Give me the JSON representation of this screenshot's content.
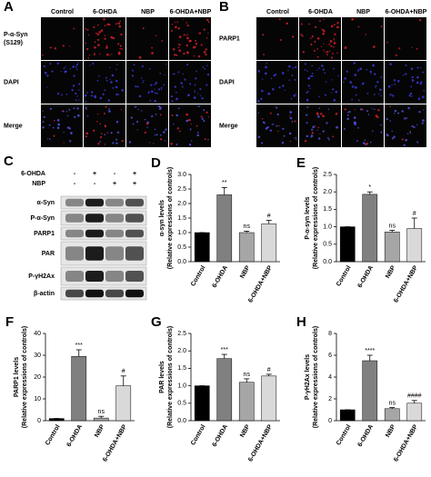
{
  "panel_a": {
    "label": "A",
    "columns": [
      "Control",
      "6-OHDA",
      "NBP",
      "6-OHDA+NBP"
    ],
    "rows": [
      [
        "P-α-Syn",
        "(S129)"
      ],
      [
        "DAPI"
      ],
      [
        "Merge"
      ]
    ]
  },
  "panel_b": {
    "label": "B",
    "columns": [
      "Control",
      "6-OHDA",
      "NBP",
      "6-OHDA+NBP"
    ],
    "rows": [
      [
        "PARP1"
      ],
      [
        "DAPI"
      ],
      [
        "Merge"
      ]
    ]
  },
  "panel_c": {
    "label": "C",
    "treatments": [
      {
        "name": "6-OHDA",
        "signs": [
          "-",
          "+",
          "-",
          "+"
        ]
      },
      {
        "name": "NBP",
        "signs": [
          "-",
          "-",
          "+",
          "+"
        ]
      }
    ],
    "bands": [
      "α-Syn",
      "P-α-Syn",
      "PARP1",
      "PAR",
      "P-γH2Ax",
      "β-actin"
    ]
  },
  "chart_data": [
    {
      "type": "bar",
      "panel": "D",
      "ylabel": "α-syn levels",
      "ylabel2": "(Relative expressions of controls)",
      "categories": [
        "Control",
        "6-OHDA",
        "NBP",
        "6-OHDA+NBP"
      ],
      "values": [
        1.0,
        2.3,
        1.0,
        1.3
      ],
      "errors": [
        0,
        0.25,
        0.05,
        0.12
      ],
      "annotations": [
        null,
        "**",
        "ns",
        "#"
      ],
      "colors": [
        "#000000",
        "#808080",
        "#a6a6a6",
        "#d9d9d9"
      ],
      "ylim": [
        0,
        3
      ],
      "yticks": [
        {
          "value": 0,
          "label": "0.0"
        },
        {
          "value": 0.5,
          "label": "0.5"
        },
        {
          "value": 1,
          "label": "1.0"
        },
        {
          "value": 1.5,
          "label": "1.5"
        },
        {
          "value": 2,
          "label": "2.0"
        },
        {
          "value": 2.5,
          "label": "2.5"
        },
        {
          "value": 3,
          "label": "3.0"
        }
      ]
    },
    {
      "type": "bar",
      "panel": "E",
      "ylabel": "P-α-syn levels",
      "ylabel2": "(Relative expressions of controls)",
      "categories": [
        "Control",
        "6-OHDA",
        "NBP",
        "6-OHDA+NBP"
      ],
      "values": [
        1.0,
        1.93,
        0.85,
        0.95
      ],
      "errors": [
        0,
        0.07,
        0.05,
        0.3
      ],
      "annotations": [
        null,
        "*",
        "ns",
        "#"
      ],
      "colors": [
        "#000000",
        "#808080",
        "#a6a6a6",
        "#d9d9d9"
      ],
      "ylim": [
        0,
        2.5
      ],
      "yticks": [
        {
          "value": 0,
          "label": "0.0"
        },
        {
          "value": 0.5,
          "label": "0.5"
        },
        {
          "value": 1,
          "label": "1.0"
        },
        {
          "value": 1.5,
          "label": "1.5"
        },
        {
          "value": 2,
          "label": "2.0"
        },
        {
          "value": 2.5,
          "label": "2.5"
        }
      ]
    },
    {
      "type": "bar",
      "panel": "F",
      "ylabel": "PARP1 levels",
      "ylabel2": "(Relative expressions of controls)",
      "categories": [
        "Control",
        "6-OHDA",
        "NBP",
        "6-OHDA+NBP"
      ],
      "values": [
        1,
        29.5,
        1.2,
        16
      ],
      "errors": [
        0,
        3,
        0.8,
        4.5
      ],
      "annotations": [
        null,
        "***",
        "ns",
        "#"
      ],
      "colors": [
        "#000000",
        "#808080",
        "#a6a6a6",
        "#d9d9d9"
      ],
      "ylim": [
        0,
        40
      ],
      "yticks": [
        0,
        10,
        20,
        30,
        40
      ]
    },
    {
      "type": "bar",
      "panel": "G",
      "ylabel": "PAR levels",
      "ylabel2": "(Relative expressions of controls)",
      "categories": [
        "Control",
        "6-OHDA",
        "NBP",
        "6-OHDA+NBP"
      ],
      "values": [
        1.0,
        1.78,
        1.1,
        1.28
      ],
      "errors": [
        0,
        0.12,
        0.1,
        0.05
      ],
      "annotations": [
        null,
        "***",
        "ns",
        "#"
      ],
      "colors": [
        "#000000",
        "#808080",
        "#a6a6a6",
        "#d9d9d9"
      ],
      "ylim": [
        0,
        2.5
      ],
      "yticks": [
        {
          "value": 0,
          "label": "0.0"
        },
        {
          "value": 0.5,
          "label": "0.5"
        },
        {
          "value": 1,
          "label": "1.0"
        },
        {
          "value": 1.5,
          "label": "1.5"
        },
        {
          "value": 2,
          "label": "2.0"
        },
        {
          "value": 2.5,
          "label": "2.5"
        }
      ]
    },
    {
      "type": "bar",
      "panel": "H",
      "ylabel": "P-γH2Ax levels",
      "ylabel2": "(Relative expressions of controls)",
      "categories": [
        "Control",
        "6-OHDA",
        "NBP",
        "6-OHDA+NBP"
      ],
      "values": [
        1,
        5.5,
        1.1,
        1.6
      ],
      "errors": [
        0,
        0.5,
        0.1,
        0.25
      ],
      "annotations": [
        null,
        "****",
        "ns",
        "####"
      ],
      "colors": [
        "#000000",
        "#808080",
        "#a6a6a6",
        "#d9d9d9"
      ],
      "ylim": [
        0,
        8
      ],
      "yticks": [
        0,
        2,
        4,
        6,
        8
      ]
    }
  ]
}
